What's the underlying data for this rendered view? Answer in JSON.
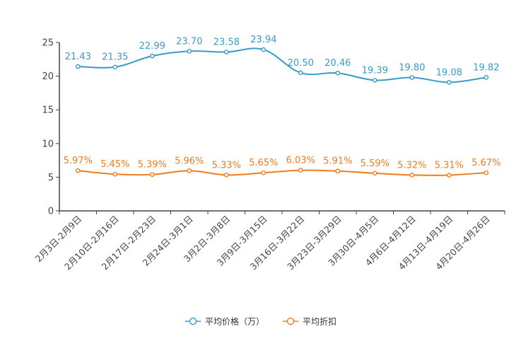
{
  "chart_data": {
    "type": "line",
    "title": "",
    "xlabel": "",
    "ylabel": "",
    "ylim": [
      0,
      25
    ],
    "yticks": [
      0,
      5,
      10,
      15,
      20,
      25
    ],
    "grid": false,
    "legend_position": "bottom-center",
    "categories": [
      "2月3日-2月9日",
      "2月10日-2月16日",
      "2月17日-2月23日",
      "2月24日-3月1日",
      "3月2日-3月8日",
      "3月9日-3月15日",
      "3月16日-3月22日",
      "3月23日-3月29日",
      "3月30日-4月5日",
      "4月6日-4月12日",
      "4月13日-4月19日",
      "4月20日-4月26日"
    ],
    "series": [
      {
        "name": "平均价格（万）",
        "color": "#3a9bc9",
        "values": [
          21.43,
          21.35,
          22.99,
          23.7,
          23.58,
          23.94,
          20.5,
          20.46,
          19.39,
          19.8,
          19.08,
          19.82
        ],
        "labels": [
          "21.43",
          "21.35",
          "22.99",
          "23.70",
          "23.58",
          "23.94",
          "20.50",
          "20.46",
          "19.39",
          "19.80",
          "19.08",
          "19.82"
        ]
      },
      {
        "name": "平均折扣",
        "color": "#f07c1c",
        "values": [
          5.97,
          5.45,
          5.39,
          5.96,
          5.33,
          5.65,
          6.03,
          5.91,
          5.59,
          5.32,
          5.31,
          5.67
        ],
        "labels": [
          "5.97%",
          "5.45%",
          "5.39%",
          "5.96%",
          "5.33%",
          "5.65%",
          "6.03%",
          "5.91%",
          "5.59%",
          "5.32%",
          "5.31%",
          "5.67%"
        ]
      }
    ]
  }
}
